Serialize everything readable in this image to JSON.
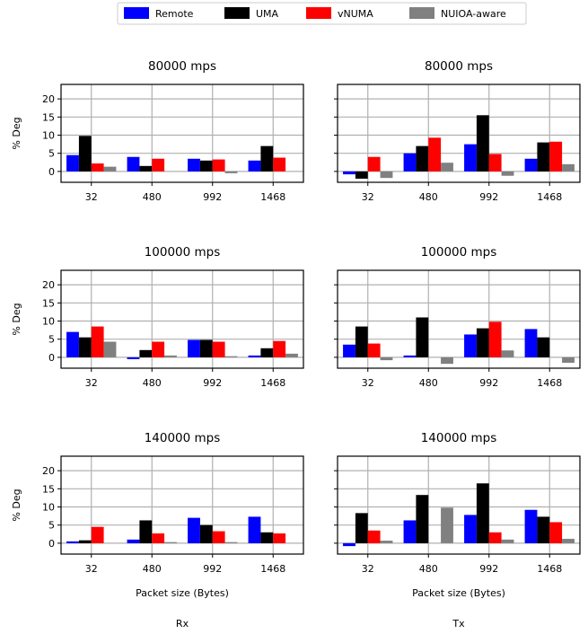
{
  "legend": {
    "placement": "top-center",
    "entries": [
      {
        "name": "Remote",
        "color": "#0000ff"
      },
      {
        "name": "UMA",
        "color": "#000000"
      },
      {
        "name": "vNUMA",
        "color": "#ff0000"
      },
      {
        "name": "NUIOA-aware",
        "color": "#808080"
      }
    ]
  },
  "column_labels": [
    "Rx",
    "Tx"
  ],
  "chart_data": [
    {
      "type": "bar",
      "title": "80000 mps",
      "column": "Rx",
      "xlabel": "",
      "ylabel": "% Deg",
      "ylim": [
        -3,
        24
      ],
      "yticks": [
        0,
        5,
        10,
        15,
        20
      ],
      "grid": true,
      "categories": [
        "32",
        "480",
        "992",
        "1468"
      ],
      "series": [
        {
          "name": "Remote",
          "values": [
            4.5,
            4.0,
            3.5,
            3.0
          ]
        },
        {
          "name": "UMA",
          "values": [
            9.8,
            1.5,
            3.0,
            7.0
          ]
        },
        {
          "name": "vNUMA",
          "values": [
            2.2,
            3.5,
            3.3,
            3.8
          ]
        },
        {
          "name": "NUIOA-aware",
          "values": [
            1.3,
            0.0,
            -0.5,
            0.0
          ]
        }
      ]
    },
    {
      "type": "bar",
      "title": "80000 mps",
      "column": "Tx",
      "xlabel": "",
      "ylabel": "",
      "ylim": [
        -3,
        24
      ],
      "yticks": [
        0,
        5,
        10,
        15,
        20
      ],
      "grid": true,
      "categories": [
        "32",
        "480",
        "992",
        "1468"
      ],
      "series": [
        {
          "name": "Remote",
          "values": [
            -0.8,
            5.0,
            7.5,
            3.5
          ]
        },
        {
          "name": "UMA",
          "values": [
            -2.0,
            7.0,
            15.5,
            8.0
          ]
        },
        {
          "name": "vNUMA",
          "values": [
            4.0,
            9.3,
            4.8,
            8.2
          ]
        },
        {
          "name": "NUIOA-aware",
          "values": [
            -1.8,
            2.4,
            -1.2,
            2.0
          ]
        }
      ]
    },
    {
      "type": "bar",
      "title": "100000 mps",
      "column": "Rx",
      "xlabel": "",
      "ylabel": "% Deg",
      "ylim": [
        -3,
        24
      ],
      "yticks": [
        0,
        5,
        10,
        15,
        20
      ],
      "grid": true,
      "categories": [
        "32",
        "480",
        "992",
        "1468"
      ],
      "series": [
        {
          "name": "Remote",
          "values": [
            7.0,
            -0.5,
            4.8,
            0.5
          ]
        },
        {
          "name": "UMA",
          "values": [
            5.5,
            2.0,
            4.8,
            2.5
          ]
        },
        {
          "name": "vNUMA",
          "values": [
            8.5,
            4.3,
            4.3,
            4.5
          ]
        },
        {
          "name": "NUIOA-aware",
          "values": [
            4.3,
            0.5,
            0.3,
            1.0
          ]
        }
      ]
    },
    {
      "type": "bar",
      "title": "100000 mps",
      "column": "Tx",
      "xlabel": "",
      "ylabel": "",
      "ylim": [
        -3,
        24
      ],
      "yticks": [
        0,
        5,
        10,
        15,
        20
      ],
      "grid": true,
      "categories": [
        "32",
        "480",
        "992",
        "1468"
      ],
      "series": [
        {
          "name": "Remote",
          "values": [
            3.5,
            0.5,
            6.3,
            7.8
          ]
        },
        {
          "name": "UMA",
          "values": [
            8.5,
            11.0,
            8.0,
            5.5
          ]
        },
        {
          "name": "vNUMA",
          "values": [
            3.8,
            0.0,
            9.8,
            0.0
          ]
        },
        {
          "name": "NUIOA-aware",
          "values": [
            -0.8,
            -1.8,
            1.9,
            -1.5
          ]
        }
      ]
    },
    {
      "type": "bar",
      "title": "140000 mps",
      "column": "Rx",
      "xlabel": "Packet size (Bytes)",
      "ylabel": "% Deg",
      "ylim": [
        -3,
        24
      ],
      "yticks": [
        0,
        5,
        10,
        15,
        20
      ],
      "grid": true,
      "categories": [
        "32",
        "480",
        "992",
        "1468"
      ],
      "series": [
        {
          "name": "Remote",
          "values": [
            0.5,
            1.0,
            7.0,
            7.3
          ]
        },
        {
          "name": "UMA",
          "values": [
            0.8,
            6.3,
            5.0,
            3.0
          ]
        },
        {
          "name": "vNUMA",
          "values": [
            4.5,
            2.7,
            3.3,
            2.7
          ]
        },
        {
          "name": "NUIOA-aware",
          "values": [
            0.0,
            0.3,
            0.3,
            0.0
          ]
        }
      ]
    },
    {
      "type": "bar",
      "title": "140000 mps",
      "column": "Tx",
      "xlabel": "Packet size (Bytes)",
      "ylabel": "",
      "ylim": [
        -3,
        24
      ],
      "yticks": [
        0,
        5,
        10,
        15,
        20
      ],
      "grid": true,
      "categories": [
        "32",
        "480",
        "992",
        "1468"
      ],
      "series": [
        {
          "name": "Remote",
          "values": [
            -0.8,
            6.3,
            7.8,
            9.2
          ]
        },
        {
          "name": "UMA",
          "values": [
            8.3,
            13.3,
            16.5,
            7.3
          ]
        },
        {
          "name": "vNUMA",
          "values": [
            3.5,
            0.0,
            3.0,
            5.8
          ]
        },
        {
          "name": "NUIOA-aware",
          "values": [
            0.7,
            9.8,
            1.0,
            1.2
          ]
        }
      ]
    }
  ]
}
